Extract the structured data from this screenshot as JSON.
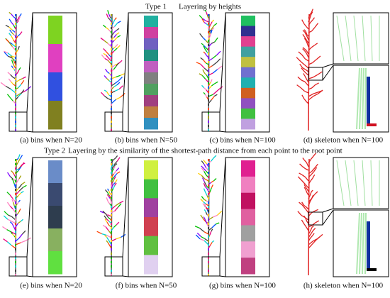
{
  "rows": [
    {
      "type_label": "Type 1",
      "heading": "Layering by heights",
      "captions": [
        "(a) bins when N=20",
        "(b) bins when N=50",
        "(c) bins when N=100",
        "(d) skeleton when N=100"
      ]
    },
    {
      "type_label": "Type 2",
      "heading": "Layering by the similarity of the shortest-path distance from each point to the root point",
      "captions": [
        "(e) bins when N=20",
        "(f) bins when N=50",
        "(g) bins when N=100",
        "(h) skeleton when N=100"
      ]
    }
  ]
}
